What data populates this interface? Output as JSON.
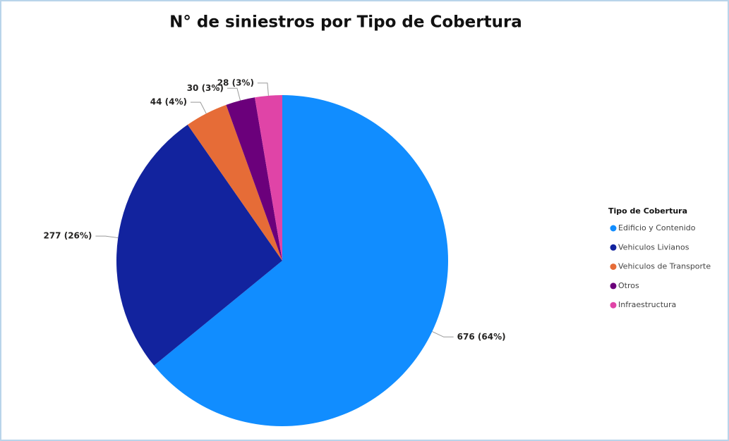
{
  "chart_data": {
    "type": "pie",
    "title": "N° de siniestros por Tipo de Cobertura",
    "legend_title": "Tipo de Cobertura",
    "categories": [
      "Edificio y Contenido",
      "Vehiculos Livianos",
      "Vehiculos de Transporte",
      "Otros",
      "Infraestructura"
    ],
    "values": [
      676,
      277,
      44,
      30,
      28
    ],
    "value_labels": [
      "676 (64%)",
      "277 (26%)",
      "44 (4%)",
      "30 (3%)",
      "28 (3%)"
    ],
    "colors": [
      "#118dff",
      "#12239e",
      "#e66c37",
      "#6b007b",
      "#e044a7"
    ],
    "legend_position": "right"
  }
}
